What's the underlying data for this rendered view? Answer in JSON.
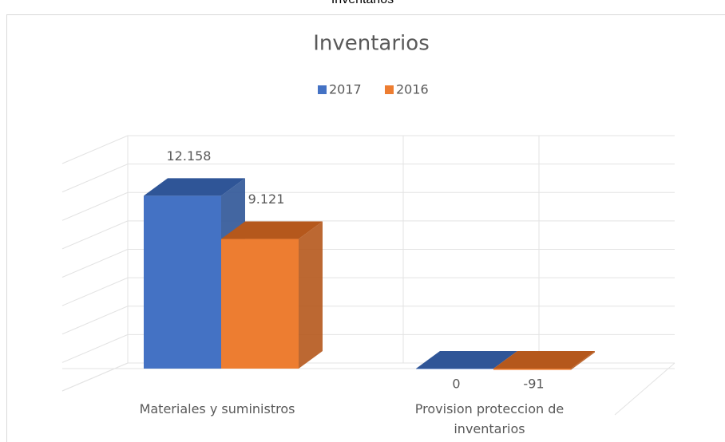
{
  "page_title": "Inventarios",
  "chart_data": {
    "type": "bar3d",
    "title": "Inventarios",
    "categories": [
      "Materiales y suministros",
      "Provision proteccion de inventarios"
    ],
    "series": [
      {
        "name": "2017",
        "color": "#4472c4",
        "shade": "#2f5597",
        "values": [
          12158,
          0
        ],
        "value_labels": [
          "12.158",
          "0"
        ]
      },
      {
        "name": "2016",
        "color": "#ed7d31",
        "shade": "#b5581c",
        "values": [
          9121,
          -91
        ],
        "value_labels": [
          "9.121",
          "-91"
        ]
      }
    ],
    "ylim": [
      0,
      16000
    ],
    "yticks": [
      0,
      2000,
      4000,
      6000,
      8000,
      10000,
      12000,
      14000,
      16000
    ],
    "grid": true,
    "legend": "top"
  }
}
